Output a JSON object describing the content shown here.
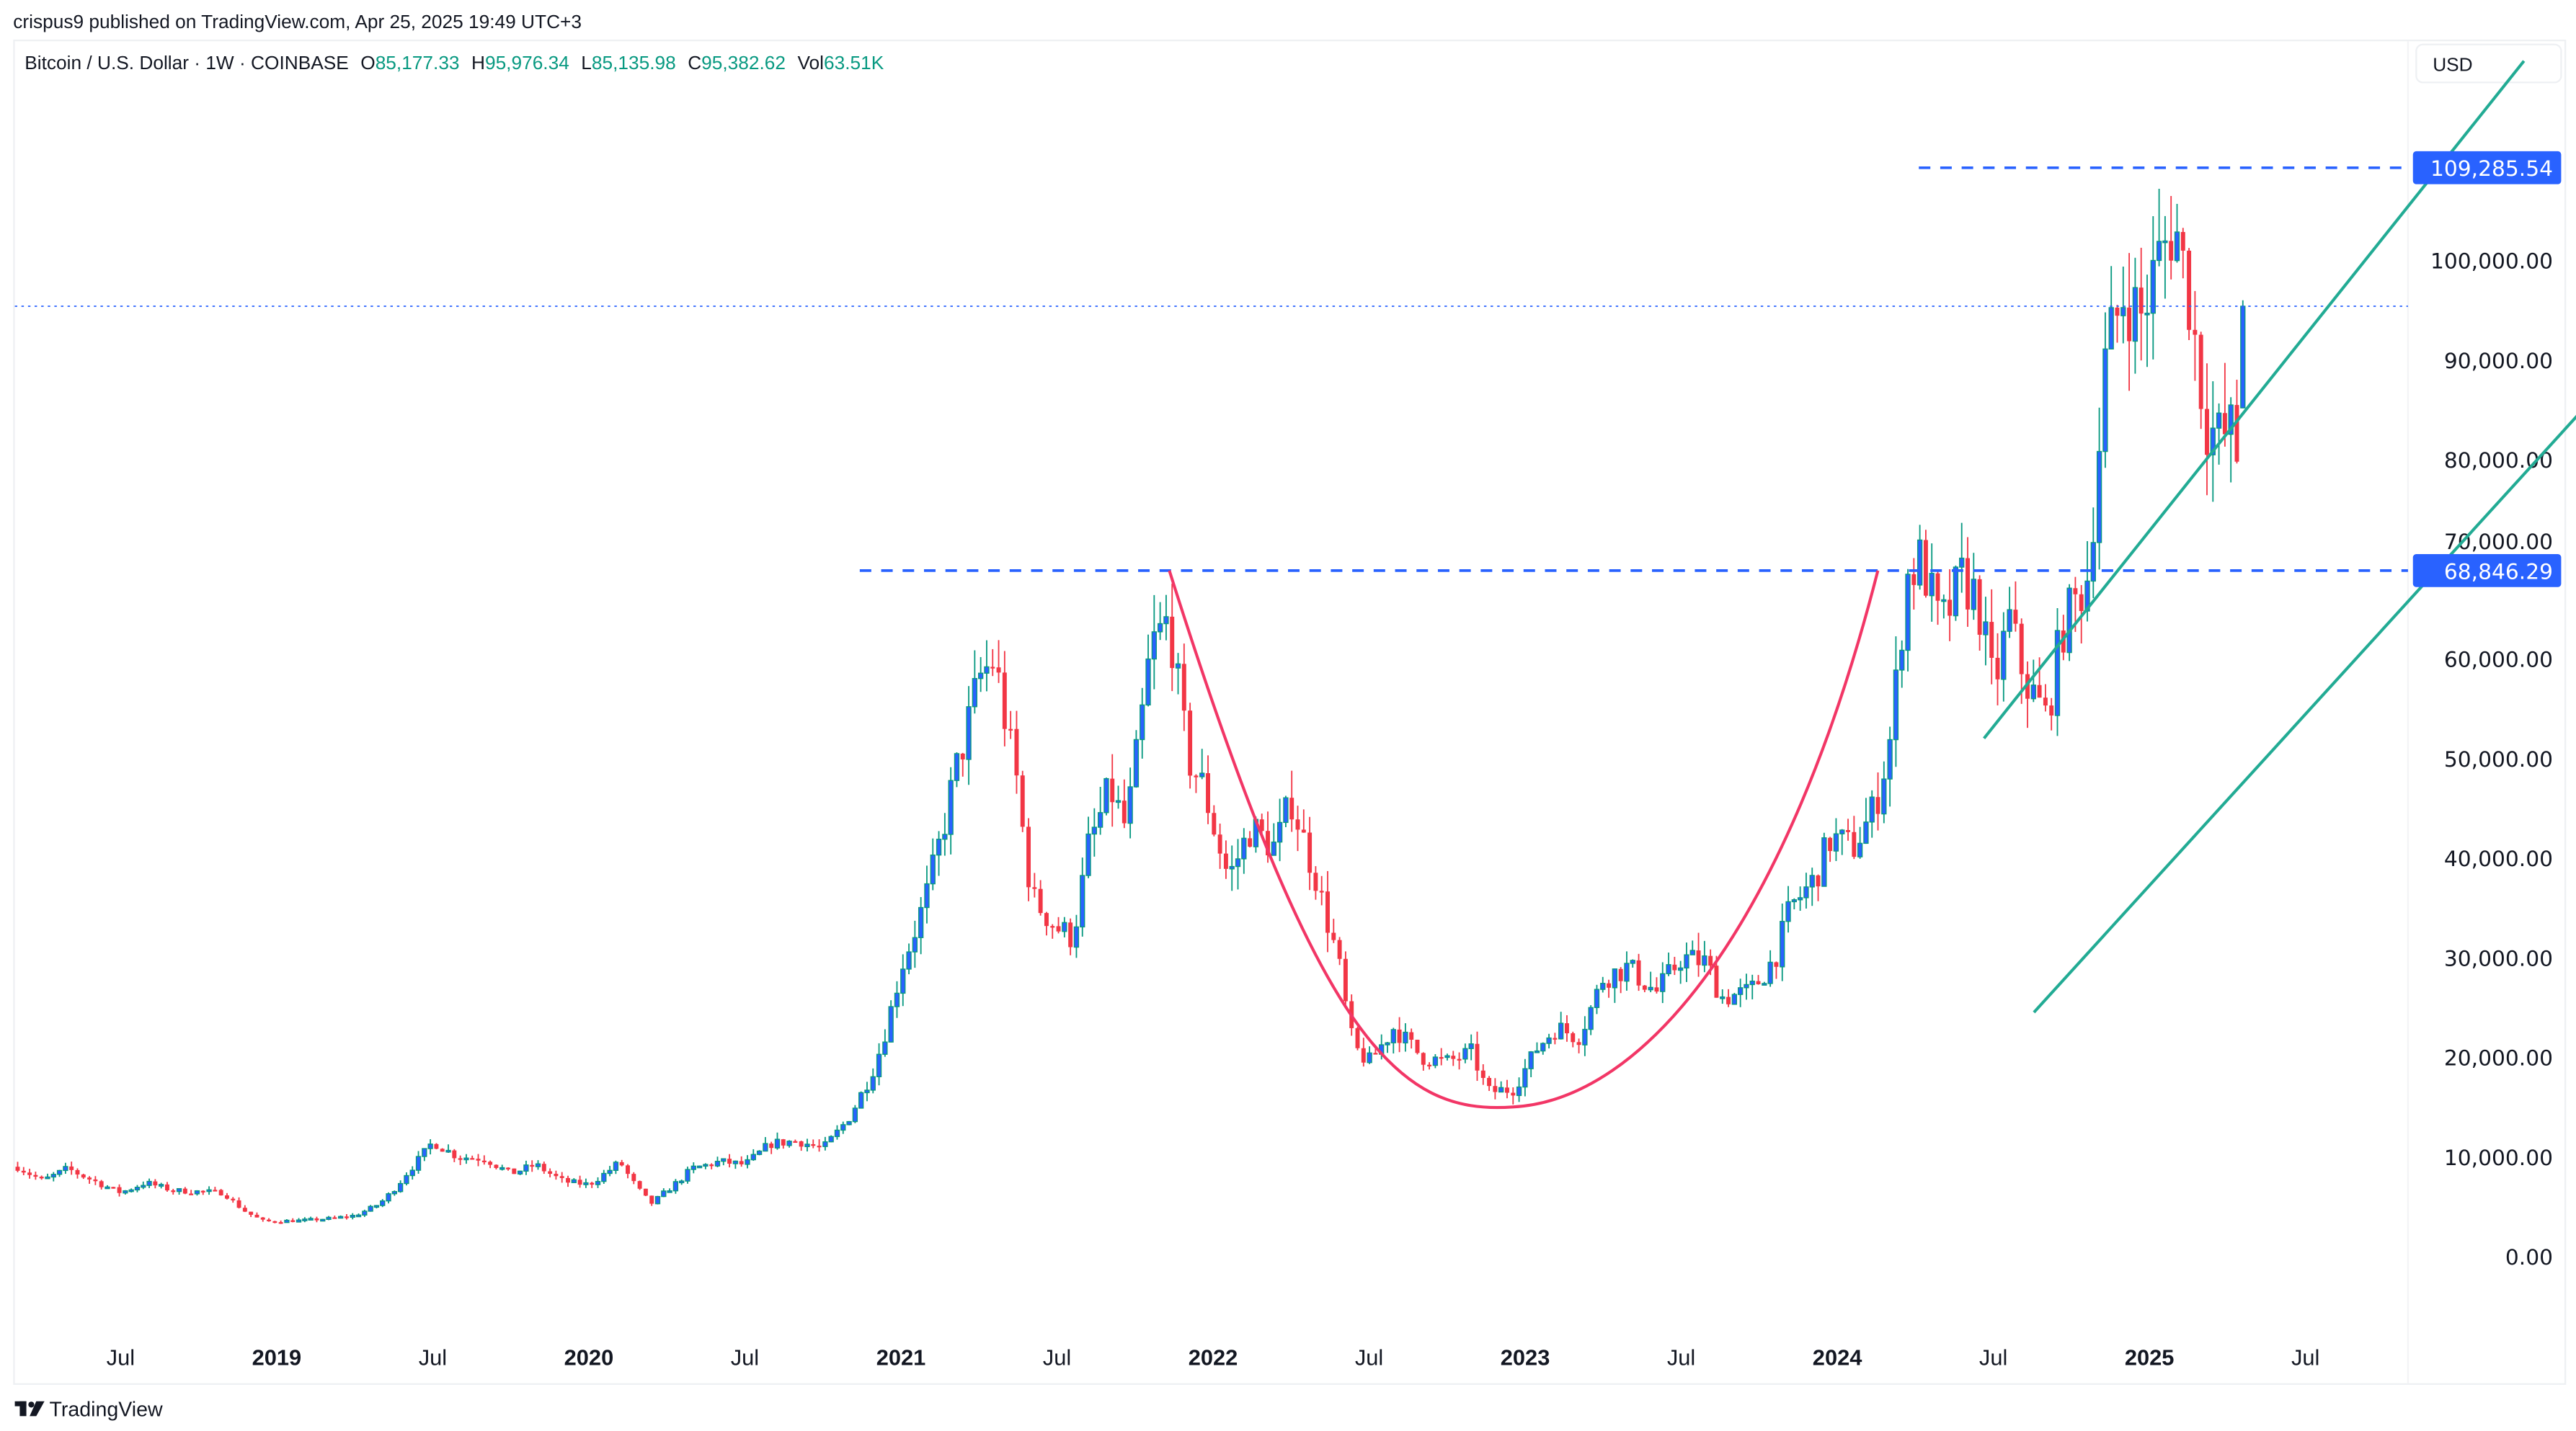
{
  "header": {
    "published": "crispus9 published on TradingView.com, Apr 25, 2025 19:49 UTC+3",
    "symbol": "Bitcoin / U.S. Dollar · 1W · COINBASE",
    "o_label": "O",
    "o_value": "85,177.33",
    "h_label": "H",
    "h_value": "95,976.34",
    "l_label": "L",
    "l_value": "85,135.98",
    "c_label": "C",
    "c_value": "95,382.62",
    "vol_label": "Vol",
    "vol_value": "63.51K"
  },
  "currency_button": "USD",
  "footer": {
    "brand": "TradingView"
  },
  "colors": {
    "up_body": "#2962FF",
    "up_border": "#089981",
    "down": "#F23645",
    "channel": "#22AB94",
    "curve": "#F23666",
    "level": "#2962FF"
  },
  "chart_data": {
    "type": "candlestick",
    "title": "Bitcoin / U.S. Dollar · 1W · COINBASE",
    "interval": "1W",
    "ylim": [
      0,
      110000
    ],
    "y_ticks": [
      0,
      10000,
      20000,
      30000,
      40000,
      50000,
      60000,
      70000,
      80000,
      90000,
      100000
    ],
    "y_tick_labels": [
      "0.00",
      "10,000.00",
      "20,000.00",
      "30,000.00",
      "40,000.00",
      "50,000.00",
      "60,000.00",
      "70,000.00",
      "80,000.00",
      "90,000.00",
      "100,000.00"
    ],
    "x_ticks": [
      {
        "label": "Jul",
        "t": 2018.5,
        "bold": false
      },
      {
        "label": "2019",
        "t": 2019.0,
        "bold": true
      },
      {
        "label": "Jul",
        "t": 2019.5,
        "bold": false
      },
      {
        "label": "2020",
        "t": 2020.0,
        "bold": true
      },
      {
        "label": "Jul",
        "t": 2020.5,
        "bold": false
      },
      {
        "label": "2021",
        "t": 2021.0,
        "bold": true
      },
      {
        "label": "Jul",
        "t": 2021.5,
        "bold": false
      },
      {
        "label": "2022",
        "t": 2022.0,
        "bold": true
      },
      {
        "label": "Jul",
        "t": 2022.5,
        "bold": false
      },
      {
        "label": "2023",
        "t": 2023.0,
        "bold": true
      },
      {
        "label": "Jul",
        "t": 2023.5,
        "bold": false
      },
      {
        "label": "2024",
        "t": 2024.0,
        "bold": true
      },
      {
        "label": "Jul",
        "t": 2024.5,
        "bold": false
      },
      {
        "label": "2025",
        "t": 2025.0,
        "bold": true
      },
      {
        "label": "Jul",
        "t": 2025.5,
        "bold": false
      }
    ],
    "approx_closes": [
      [
        2018.17,
        9000
      ],
      [
        2018.25,
        7600
      ],
      [
        2018.33,
        8800
      ],
      [
        2018.42,
        7500
      ],
      [
        2018.5,
        6400
      ],
      [
        2018.58,
        7400
      ],
      [
        2018.67,
        6600
      ],
      [
        2018.75,
        6500
      ],
      [
        2018.83,
        6400
      ],
      [
        2018.9,
        4500
      ],
      [
        2018.96,
        3500
      ],
      [
        2019.08,
        3600
      ],
      [
        2019.17,
        3800
      ],
      [
        2019.25,
        4100
      ],
      [
        2019.33,
        5300
      ],
      [
        2019.42,
        8500
      ],
      [
        2019.5,
        11500
      ],
      [
        2019.58,
        10000
      ],
      [
        2019.67,
        9800
      ],
      [
        2019.75,
        8300
      ],
      [
        2019.83,
        9200
      ],
      [
        2019.92,
        7500
      ],
      [
        2020.0,
        7200
      ],
      [
        2020.1,
        9500
      ],
      [
        2020.2,
        5300
      ],
      [
        2020.25,
        6600
      ],
      [
        2020.33,
        8800
      ],
      [
        2020.42,
        9500
      ],
      [
        2020.5,
        9200
      ],
      [
        2020.58,
        11300
      ],
      [
        2020.67,
        11600
      ],
      [
        2020.75,
        10800
      ],
      [
        2020.83,
        13800
      ],
      [
        2020.92,
        19500
      ],
      [
        2021.0,
        29000
      ],
      [
        2021.08,
        36000
      ],
      [
        2021.17,
        48000
      ],
      [
        2021.25,
        58000
      ],
      [
        2021.3,
        60000
      ],
      [
        2021.37,
        48000
      ],
      [
        2021.42,
        36000
      ],
      [
        2021.5,
        33000
      ],
      [
        2021.55,
        32000
      ],
      [
        2021.6,
        41000
      ],
      [
        2021.67,
        47000
      ],
      [
        2021.72,
        43000
      ],
      [
        2021.8,
        61000
      ],
      [
        2021.86,
        64000
      ],
      [
        2021.92,
        50000
      ],
      [
        2021.97,
        47000
      ],
      [
        2022.05,
        38000
      ],
      [
        2022.12,
        43000
      ],
      [
        2022.2,
        41000
      ],
      [
        2022.25,
        46000
      ],
      [
        2022.33,
        38000
      ],
      [
        2022.4,
        30000
      ],
      [
        2022.45,
        21000
      ],
      [
        2022.5,
        19500
      ],
      [
        2022.58,
        23000
      ],
      [
        2022.67,
        20000
      ],
      [
        2022.75,
        19500
      ],
      [
        2022.83,
        20500
      ],
      [
        2022.88,
        16500
      ],
      [
        2022.96,
        16800
      ],
      [
        2023.04,
        21000
      ],
      [
        2023.1,
        23000
      ],
      [
        2023.17,
        22000
      ],
      [
        2023.25,
        28000
      ],
      [
        2023.33,
        29000
      ],
      [
        2023.42,
        26500
      ],
      [
        2023.5,
        30000
      ],
      [
        2023.58,
        29500
      ],
      [
        2023.63,
        26000
      ],
      [
        2023.72,
        26500
      ],
      [
        2023.8,
        30000
      ],
      [
        2023.85,
        35000
      ],
      [
        2023.92,
        37500
      ],
      [
        2023.98,
        42000
      ],
      [
        2024.05,
        41000
      ],
      [
        2024.12,
        45000
      ],
      [
        2024.17,
        52000
      ],
      [
        2024.22,
        68000
      ],
      [
        2024.27,
        70000
      ],
      [
        2024.33,
        63000
      ],
      [
        2024.4,
        68000
      ],
      [
        2024.45,
        66000
      ],
      [
        2024.5,
        57000
      ],
      [
        2024.55,
        64000
      ],
      [
        2024.6,
        58000
      ],
      [
        2024.67,
        54000
      ],
      [
        2024.72,
        63000
      ],
      [
        2024.8,
        68000
      ],
      [
        2024.86,
        90000
      ],
      [
        2024.92,
        97000
      ],
      [
        2024.97,
        94000
      ],
      [
        2025.03,
        100000
      ],
      [
        2025.08,
        104000
      ],
      [
        2025.13,
        96000
      ],
      [
        2025.18,
        84000
      ],
      [
        2025.22,
        82000
      ],
      [
        2025.27,
        83000
      ],
      [
        2025.29,
        78000
      ],
      [
        2025.306,
        95382.62
      ]
    ],
    "last_candle": {
      "open": 85177.33,
      "high": 95976.34,
      "low": 85135.98,
      "close": 95382.62,
      "volume": "63.51K"
    },
    "current_price": 95382.62,
    "levels": [
      {
        "label": "109,285.54",
        "value": 109285.54,
        "style": "dashed"
      },
      {
        "label": "68,846.29",
        "value": 68846.29,
        "style": "dashed"
      }
    ],
    "annotations": {
      "ascending_channel": {
        "upper": [
          [
            2024.47,
            52000
          ],
          [
            2026.2,
            120000
          ]
        ],
        "lower": [
          [
            2024.63,
            24500
          ],
          [
            2026.65,
            94000
          ]
        ]
      },
      "cup_curve": {
        "start": [
          2021.86,
          68846
        ],
        "bottom": [
          2022.96,
          15000
        ],
        "end": [
          2024.13,
          68846
        ]
      }
    }
  }
}
